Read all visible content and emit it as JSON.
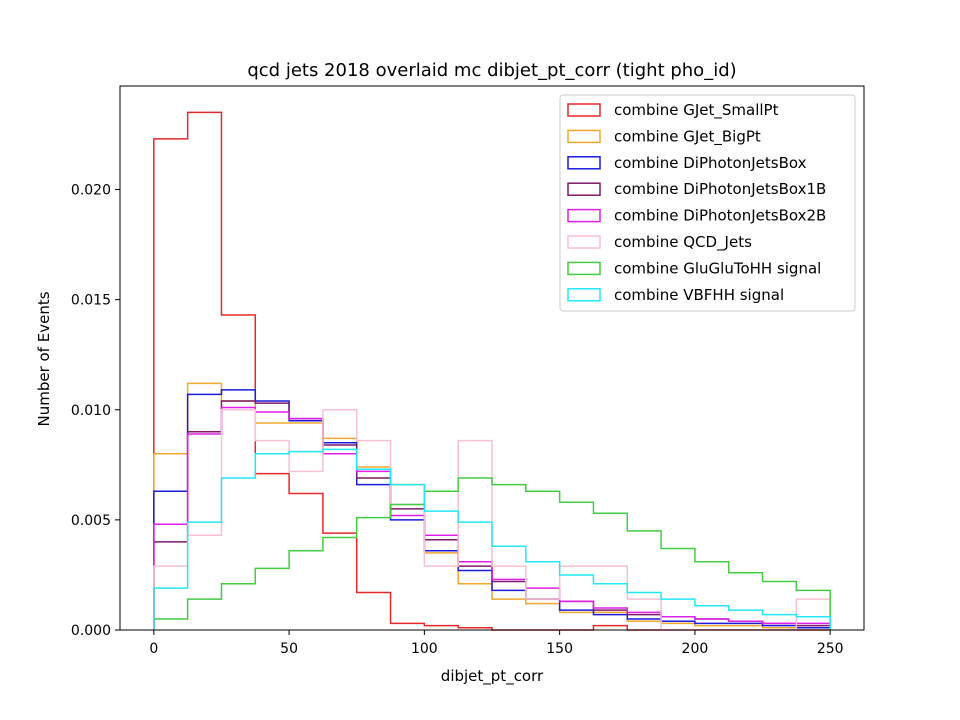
{
  "chart_data": {
    "type": "histogram",
    "title": "qcd jets 2018 overlaid mc dibjet_pt_corr (tight pho_id)",
    "xlabel": "dibjet_pt_corr",
    "ylabel": "Number of Events",
    "xlim": [
      -12.5,
      262.5
    ],
    "ylim": [
      0,
      0.0247
    ],
    "xticks": [
      0,
      50,
      100,
      150,
      200,
      250
    ],
    "yticks": [
      0.0,
      0.005,
      0.01,
      0.015,
      0.02
    ],
    "ytick_labels": [
      "0.000",
      "0.005",
      "0.010",
      "0.015",
      "0.020"
    ],
    "grid": false,
    "legend_position": "top-right",
    "bin_edges": [
      0,
      12.5,
      25,
      37.5,
      50,
      62.5,
      75,
      87.5,
      100,
      112.5,
      125,
      137.5,
      150,
      162.5,
      175,
      187.5,
      200,
      212.5,
      225,
      237.5,
      250
    ],
    "series": [
      {
        "name": "combine GJet_SmallPt",
        "color": "#e8292b",
        "values": [
          0.0223,
          0.0235,
          0.0143,
          0.0071,
          0.0062,
          0.0044,
          0.0017,
          0.0003,
          0.0002,
          0.0001,
          0.0,
          0.0,
          0.0,
          0.0002,
          0.0,
          0.0,
          0.0,
          0.0,
          0.0,
          0.0
        ]
      },
      {
        "name": "combine GJet_BigPt",
        "color": "#f0a830",
        "values": [
          0.008,
          0.0112,
          0.0104,
          0.0094,
          0.0094,
          0.0087,
          0.0074,
          0.0066,
          0.0035,
          0.0021,
          0.0014,
          0.0012,
          0.0008,
          0.0008,
          0.0004,
          0.0003,
          0.0002,
          0.0002,
          0.0001,
          0.0001
        ]
      },
      {
        "name": "combine DiPhotonJetsBox",
        "color": "#1c1cdc",
        "values": [
          0.0063,
          0.0107,
          0.0109,
          0.0104,
          0.0095,
          0.0085,
          0.0066,
          0.005,
          0.0036,
          0.0027,
          0.0018,
          0.0014,
          0.0009,
          0.0007,
          0.0005,
          0.0004,
          0.0003,
          0.0003,
          0.0002,
          0.0001
        ]
      },
      {
        "name": "combine DiPhotonJetsBox1B",
        "color": "#7d1a6a",
        "values": [
          0.004,
          0.009,
          0.0104,
          0.0103,
          0.0096,
          0.0084,
          0.0069,
          0.0055,
          0.0041,
          0.0029,
          0.0022,
          0.0014,
          0.0013,
          0.0009,
          0.0007,
          0.0006,
          0.0005,
          0.0004,
          0.0003,
          0.0002
        ]
      },
      {
        "name": "combine DiPhotonJetsBox2B",
        "color": "#e020e8",
        "values": [
          0.0048,
          0.0089,
          0.0101,
          0.0099,
          0.0096,
          0.008,
          0.0072,
          0.0052,
          0.0043,
          0.0031,
          0.0023,
          0.0019,
          0.0013,
          0.001,
          0.0008,
          0.0006,
          0.0005,
          0.0004,
          0.0003,
          0.0003
        ]
      },
      {
        "name": "combine QCD_Jets",
        "color": "#f8c0d4",
        "values": [
          0.0029,
          0.0043,
          0.01,
          0.0086,
          0.0072,
          0.01,
          0.0086,
          0.0057,
          0.0029,
          0.0086,
          0.0029,
          0.0014,
          0.0029,
          0.0029,
          0.0014,
          0.0,
          0.0,
          0.0,
          0.0,
          0.0014
        ]
      },
      {
        "name": "combine GluGluToHH signal",
        "color": "#44cc44",
        "values": [
          0.0005,
          0.0014,
          0.0021,
          0.0028,
          0.0036,
          0.0042,
          0.0051,
          0.0057,
          0.0063,
          0.0069,
          0.0066,
          0.0063,
          0.0058,
          0.0053,
          0.0045,
          0.0037,
          0.0031,
          0.0026,
          0.0022,
          0.0018
        ]
      },
      {
        "name": "combine VBFHH signal",
        "color": "#22e8f8",
        "values": [
          0.0019,
          0.0049,
          0.0069,
          0.008,
          0.0081,
          0.0082,
          0.0073,
          0.0066,
          0.0054,
          0.0049,
          0.0038,
          0.0031,
          0.0025,
          0.0021,
          0.0017,
          0.0014,
          0.0011,
          0.0009,
          0.0007,
          0.0006
        ]
      }
    ]
  }
}
